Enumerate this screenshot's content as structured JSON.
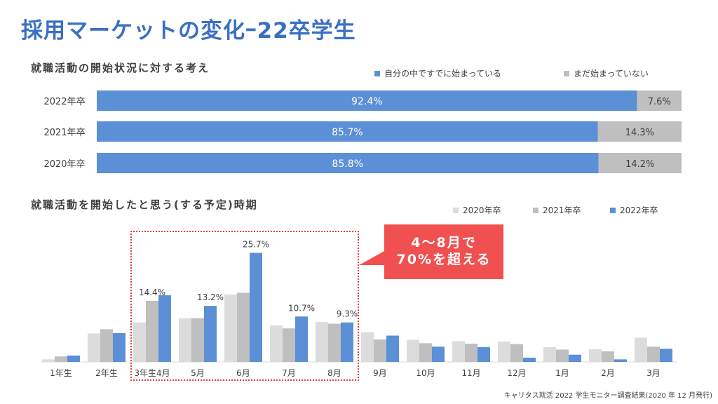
{
  "title": "採用マーケットの変化ｰ22卒学生",
  "source": "キャリタス就活 2022 学生モニター調査結果(2020 年 12 月発行)",
  "callout": {
    "line1": "4～8月で",
    "line2": "70%を超える"
  },
  "colors": {
    "blue": "#5b8fd6",
    "lightgray": "#dcdcdc",
    "midgray": "#bfbfbf",
    "stackgray": "#bfbfbf",
    "title": "#3a6fc4",
    "callout": "#f05050"
  },
  "chart_data": [
    {
      "type": "bar",
      "orientation": "horizontal-stacked",
      "title": "就職活動の開始状況に対する考え",
      "categories": [
        "2022年卒",
        "2021年卒",
        "2020年卒"
      ],
      "series": [
        {
          "name": "自分の中ですでに始まっている",
          "values": [
            92.4,
            85.7,
            85.8
          ],
          "labels": [
            "92.4%",
            "85.7%",
            "85.8%"
          ]
        },
        {
          "name": "まだ始まっていない",
          "values": [
            7.6,
            14.3,
            14.2
          ],
          "labels": [
            "7.6%",
            "14.3%",
            "14.2%"
          ]
        }
      ],
      "legend": "top-right"
    },
    {
      "type": "bar",
      "title": "就職活動を開始したと思う(する予定)時期",
      "categories": [
        "1年生",
        "2年生",
        "3年生4月",
        "5月",
        "6月",
        "7月",
        "8月",
        "9月",
        "10月",
        "11月",
        "12月",
        "1月",
        "2月",
        "3月"
      ],
      "series": [
        {
          "name": "2020年卒",
          "values": [
            0.6,
            6.7,
            9.3,
            10.3,
            15.9,
            8.6,
            9.4,
            7.0,
            5.2,
            4.9,
            4.8,
            3.5,
            3.0,
            5.7
          ]
        },
        {
          "name": "2021年卒",
          "values": [
            1.3,
            7.7,
            14.4,
            10.3,
            16.3,
            7.9,
            9.0,
            5.3,
            4.4,
            4.3,
            4.2,
            2.9,
            2.5,
            3.6
          ]
        },
        {
          "name": "2022年卒",
          "values": [
            1.5,
            6.8,
            15.7,
            13.2,
            25.7,
            10.7,
            9.3,
            6.2,
            3.6,
            3.5,
            1.0,
            1.7,
            0.6,
            3.1
          ]
        }
      ],
      "data_labels": [
        {
          "category": "3年生4月",
          "series": "2021年卒",
          "text": "14.4%"
        },
        {
          "category": "5月",
          "series": "2022年卒",
          "text": "13.2%"
        },
        {
          "category": "6月",
          "series": "2022年卒",
          "text": "25.7%"
        },
        {
          "category": "7月",
          "series": "2022年卒",
          "text": "10.7%"
        },
        {
          "category": "8月",
          "series": "2022年卒",
          "text": "9.3%"
        }
      ],
      "legend": "top-right"
    }
  ]
}
